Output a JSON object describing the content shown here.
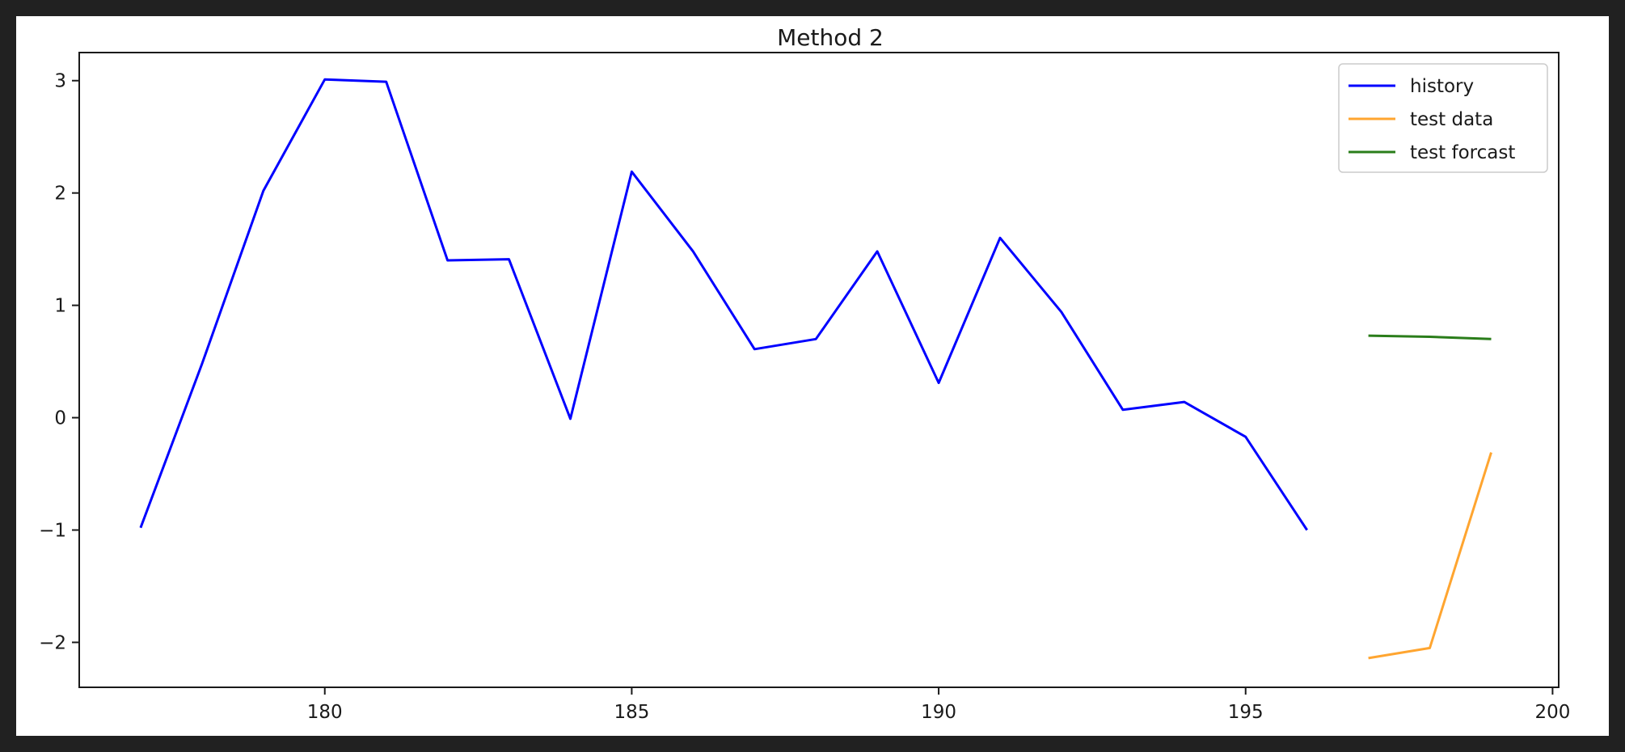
{
  "chart_data": {
    "type": "line",
    "title": "Method 2",
    "xlabel": "",
    "ylabel": "",
    "xlim": [
      176,
      200.1
    ],
    "ylim": [
      -2.4,
      3.25
    ],
    "xticks": [
      180,
      185,
      190,
      195,
      200
    ],
    "yticks": [
      -2,
      -1,
      0,
      1,
      2,
      3
    ],
    "xtick_labels": [
      "180",
      "185",
      "190",
      "195",
      "200"
    ],
    "ytick_labels": [
      "−2",
      "−1",
      "0",
      "1",
      "2",
      "3"
    ],
    "grid": false,
    "legend_position": "top-right",
    "series": [
      {
        "name": "history",
        "color": "#0000ff",
        "x": [
          177,
          178,
          179,
          180,
          181,
          182,
          183,
          184,
          185,
          186,
          187,
          188,
          189,
          190,
          191,
          192,
          193,
          194,
          195,
          196
        ],
        "y": [
          -0.98,
          0.48,
          2.02,
          3.01,
          2.99,
          1.4,
          1.41,
          -0.01,
          2.19,
          1.48,
          0.61,
          0.7,
          1.48,
          0.31,
          1.6,
          0.94,
          0.07,
          0.14,
          -0.17,
          -1.0
        ]
      },
      {
        "name": "test data",
        "color": "#ffa530",
        "x": [
          197,
          198,
          199
        ],
        "y": [
          -2.14,
          -2.05,
          -0.31
        ]
      },
      {
        "name": "test forcast",
        "color": "#2a7d1a",
        "x": [
          197,
          198,
          199
        ],
        "y": [
          0.73,
          0.72,
          0.7
        ]
      }
    ]
  }
}
